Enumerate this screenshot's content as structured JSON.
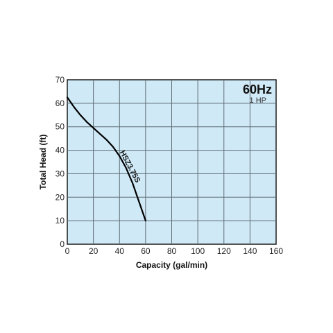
{
  "chart_data": {
    "type": "line",
    "title": "60Hz",
    "subtitle": "1 HP",
    "xlabel": "Capacity (gal/min)",
    "ylabel": "Total Head (ft)",
    "xlim": [
      0,
      160
    ],
    "ylim": [
      0,
      70
    ],
    "xticks": [
      0,
      20,
      40,
      60,
      80,
      100,
      120,
      140,
      160
    ],
    "yticks": [
      0,
      10,
      20,
      30,
      40,
      50,
      60,
      70
    ],
    "grid": true,
    "series": [
      {
        "name": "HSZ3.75S",
        "x": [
          0,
          5,
          10,
          15,
          20,
          25,
          30,
          35,
          40,
          45,
          50,
          55,
          60
        ],
        "y": [
          62.5,
          58.5,
          55,
          52,
          49.5,
          47,
          44.5,
          41.5,
          37.5,
          32.5,
          26,
          18,
          10
        ]
      }
    ]
  },
  "colors": {
    "plot_background": "#cfe9f6",
    "grid": "#5f6b73",
    "curve": "#000000"
  }
}
